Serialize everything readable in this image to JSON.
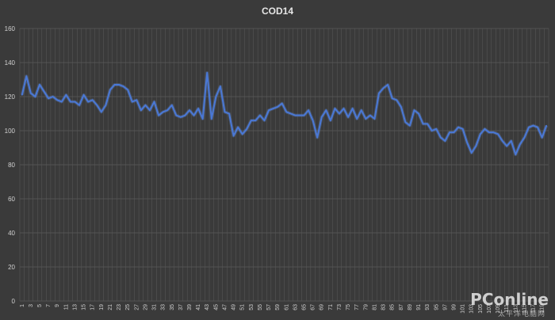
{
  "watermark": {
    "brand": "PConline",
    "tagline": "太平洋电脑网"
  },
  "chart_data": {
    "type": "line",
    "title": "COD14",
    "xlabel": "",
    "ylabel": "",
    "ylim": [
      0,
      160
    ],
    "yticks": [
      0,
      20,
      40,
      60,
      80,
      100,
      120,
      140,
      160
    ],
    "grid": true,
    "legend": "none",
    "colors": {
      "background": "#3a3a3a",
      "grid": "#5a5a5a",
      "line": "#4a78d6",
      "text": "#d0d0d0"
    },
    "x": [
      1,
      2,
      3,
      4,
      5,
      6,
      7,
      8,
      9,
      10,
      11,
      12,
      13,
      14,
      15,
      16,
      17,
      18,
      19,
      20,
      21,
      22,
      23,
      24,
      25,
      26,
      27,
      28,
      29,
      30,
      31,
      32,
      33,
      34,
      35,
      36,
      37,
      38,
      39,
      40,
      41,
      42,
      43,
      44,
      45,
      46,
      47,
      48,
      49,
      50,
      51,
      52,
      53,
      54,
      55,
      56,
      57,
      58,
      59,
      60,
      61,
      62,
      63,
      64,
      65,
      66,
      67,
      68,
      69,
      70,
      71,
      72,
      73,
      74,
      75,
      76,
      77,
      78,
      79,
      80,
      81,
      82,
      83,
      84,
      85,
      86,
      87,
      88,
      89,
      90,
      91,
      92,
      93,
      94,
      95,
      96,
      97,
      98,
      99,
      100,
      101,
      102,
      103,
      104,
      105,
      106,
      107,
      108,
      109,
      110,
      111,
      112,
      113,
      114,
      115,
      116,
      117,
      118,
      119,
      120
    ],
    "series": [
      {
        "values": [
          121,
          132,
          122,
          120,
          127,
          123,
          119,
          120,
          118,
          117,
          121,
          117,
          117,
          115,
          121,
          117,
          118,
          115,
          111,
          115,
          124,
          127,
          127,
          126,
          124,
          117,
          118,
          112,
          115,
          112,
          117,
          109,
          111,
          112,
          115,
          109,
          108,
          109,
          112,
          109,
          113,
          107,
          134,
          107,
          120,
          126,
          111,
          110,
          97,
          102,
          98,
          101,
          106,
          106,
          109,
          106,
          112,
          113,
          114,
          116,
          111,
          110,
          109,
          109,
          109,
          112,
          106,
          96,
          108,
          112,
          106,
          113,
          110,
          113,
          108,
          113,
          107,
          112,
          107,
          109,
          107,
          122,
          125,
          127,
          119,
          118,
          114,
          105,
          103,
          112,
          110,
          104,
          104,
          100,
          101,
          96,
          94,
          99,
          99,
          102,
          101,
          93,
          87,
          91,
          98,
          101,
          99,
          99,
          98,
          94,
          91,
          94,
          86,
          92,
          96,
          102,
          103,
          102,
          96,
          103
        ]
      }
    ]
  }
}
